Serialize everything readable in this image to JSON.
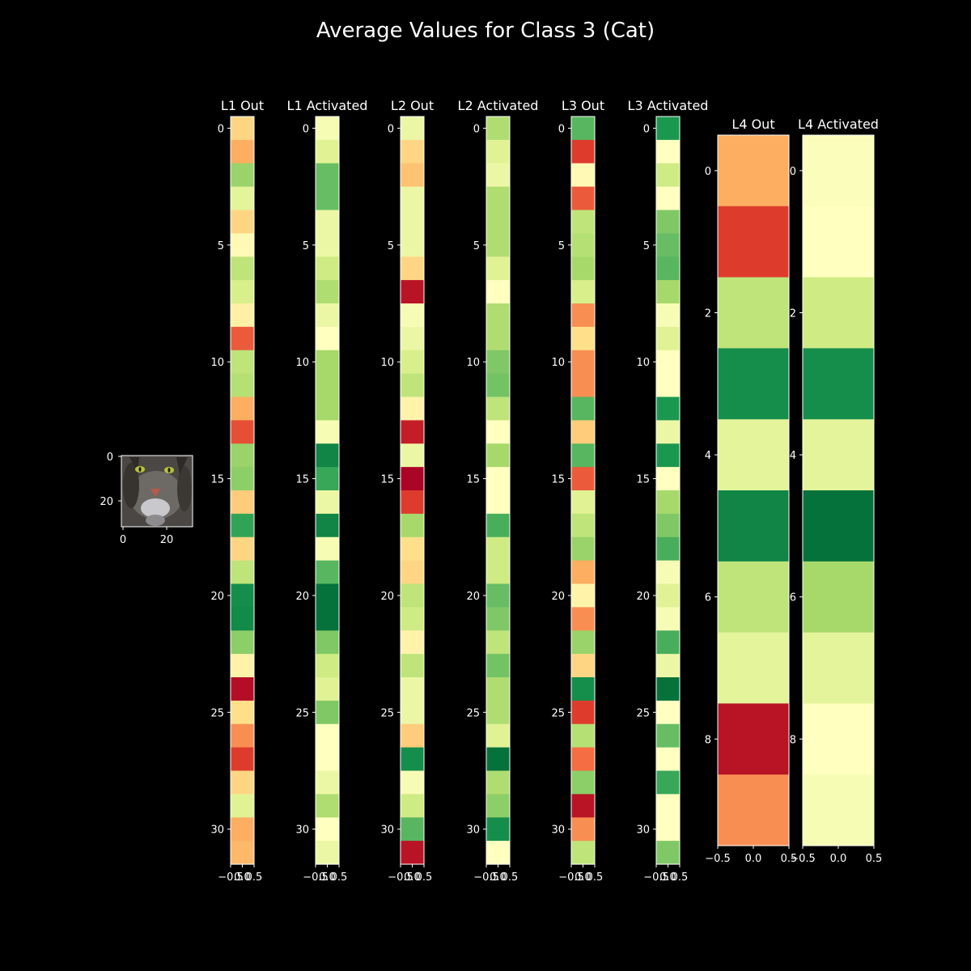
{
  "chart_data": {
    "type": "heatmap",
    "title": "Average Values for Class 3 (Cat)",
    "colormap": "RdYlGn",
    "thumbnail": {
      "x_ticks": [
        "0",
        "20"
      ],
      "y_ticks": [
        "0",
        "20"
      ]
    },
    "columns": [
      {
        "label": "L1 Out",
        "rows": 32,
        "y_ticks": [
          "0",
          "5",
          "10",
          "15",
          "20",
          "25",
          "30"
        ],
        "x_ticks": [
          "−0.5",
          "0.0",
          "0.5"
        ],
        "values": [
          0.38,
          0.3,
          0.72,
          0.57,
          0.38,
          0.48,
          0.65,
          0.6,
          0.45,
          0.17,
          0.65,
          0.67,
          0.3,
          0.15,
          0.72,
          0.74,
          0.36,
          0.87,
          0.38,
          0.65,
          0.92,
          0.93,
          0.74,
          0.46,
          0.03,
          0.4,
          0.25,
          0.12,
          0.38,
          0.58,
          0.3,
          0.32
        ]
      },
      {
        "label": "L1 Activated",
        "rows": 32,
        "y_ticks": [
          "0",
          "5",
          "10",
          "15",
          "20",
          "25",
          "30"
        ],
        "x_ticks": [
          "−0.5",
          "0.0",
          "0.5"
        ],
        "values": [
          0.52,
          0.58,
          0.8,
          0.8,
          0.55,
          0.55,
          0.62,
          0.68,
          0.55,
          0.5,
          0.7,
          0.7,
          0.7,
          0.52,
          0.94,
          0.86,
          0.55,
          0.94,
          0.52,
          0.82,
          0.98,
          0.98,
          0.76,
          0.62,
          0.58,
          0.76,
          0.5,
          0.5,
          0.55,
          0.68,
          0.5,
          0.55
        ]
      },
      {
        "label": "L2 Out",
        "rows": 32,
        "y_ticks": [
          "0",
          "5",
          "10",
          "15",
          "20",
          "25",
          "30"
        ],
        "x_ticks": [
          "−0.5",
          "0.0",
          "0.5"
        ],
        "values": [
          0.55,
          0.38,
          0.34,
          0.55,
          0.55,
          0.55,
          0.38,
          0.04,
          0.52,
          0.55,
          0.6,
          0.65,
          0.46,
          0.06,
          0.55,
          0.01,
          0.12,
          0.7,
          0.4,
          0.38,
          0.65,
          0.62,
          0.46,
          0.65,
          0.55,
          0.55,
          0.36,
          0.92,
          0.52,
          0.62,
          0.82,
          0.04
        ]
      },
      {
        "label": "L2 Activated",
        "rows": 32,
        "y_ticks": [
          "0",
          "5",
          "10",
          "15",
          "20",
          "25",
          "30"
        ],
        "x_ticks": [
          "−0.5",
          "0.0",
          "0.5"
        ],
        "values": [
          0.68,
          0.58,
          0.55,
          0.68,
          0.68,
          0.68,
          0.58,
          0.5,
          0.68,
          0.68,
          0.76,
          0.78,
          0.65,
          0.5,
          0.7,
          0.5,
          0.5,
          0.84,
          0.62,
          0.62,
          0.8,
          0.76,
          0.65,
          0.78,
          0.68,
          0.68,
          0.58,
          0.98,
          0.68,
          0.74,
          0.92,
          0.5
        ]
      },
      {
        "label": "L3 Out",
        "rows": 32,
        "y_ticks": [
          "0",
          "5",
          "10",
          "15",
          "20",
          "25",
          "30"
        ],
        "x_ticks": [
          "−0.5",
          "0.0",
          "0.5"
        ],
        "values": [
          0.82,
          0.12,
          0.48,
          0.17,
          0.65,
          0.67,
          0.7,
          0.6,
          0.25,
          0.4,
          0.25,
          0.25,
          0.82,
          0.36,
          0.82,
          0.17,
          0.58,
          0.65,
          0.72,
          0.3,
          0.46,
          0.25,
          0.72,
          0.38,
          0.92,
          0.12,
          0.67,
          0.2,
          0.74,
          0.04,
          0.25,
          0.65
        ]
      },
      {
        "label": "L3 Activated",
        "rows": 32,
        "y_ticks": [
          "0",
          "5",
          "10",
          "15",
          "20",
          "25",
          "30"
        ],
        "x_ticks": [
          "−0.5",
          "0.0",
          "0.5"
        ],
        "values": [
          0.9,
          0.5,
          0.62,
          0.5,
          0.76,
          0.8,
          0.82,
          0.7,
          0.52,
          0.58,
          0.5,
          0.5,
          0.9,
          0.55,
          0.9,
          0.5,
          0.7,
          0.76,
          0.84,
          0.52,
          0.58,
          0.52,
          0.84,
          0.55,
          0.98,
          0.5,
          0.8,
          0.5,
          0.86,
          0.5,
          0.5,
          0.76
        ]
      },
      {
        "label": "L4 Out",
        "rows": 10,
        "y_ticks": [
          "0",
          "2",
          "4",
          "6",
          "8"
        ],
        "x_ticks": [
          "−0.5",
          "0.0",
          "0.5"
        ],
        "values": [
          0.3,
          0.12,
          0.65,
          0.92,
          0.57,
          0.94,
          0.65,
          0.57,
          0.04,
          0.25
        ]
      },
      {
        "label": "L4 Activated",
        "rows": 10,
        "y_ticks": [
          "0",
          "2",
          "4",
          "6",
          "8"
        ],
        "x_ticks": [
          "−0.5",
          "0.0",
          "0.5"
        ],
        "values": [
          0.51,
          0.5,
          0.62,
          0.92,
          0.57,
          0.98,
          0.7,
          0.57,
          0.5,
          0.52
        ]
      }
    ]
  }
}
